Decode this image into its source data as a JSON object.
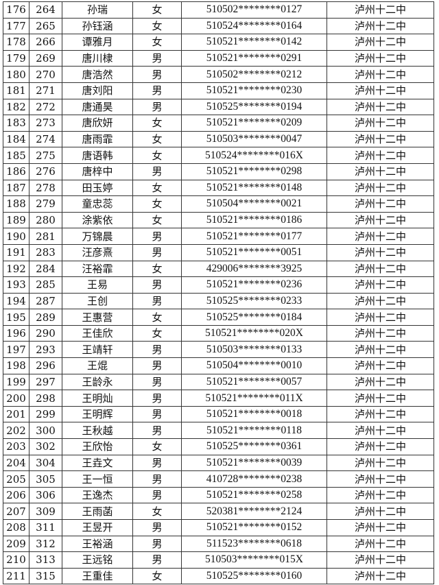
{
  "table": {
    "rows": [
      [
        "176",
        "264",
        "孙瑞",
        "女",
        "510502********0127",
        "泸州十二中"
      ],
      [
        "177",
        "265",
        "孙钰涵",
        "女",
        "510524********0164",
        "泸州十二中"
      ],
      [
        "178",
        "266",
        "谭雅月",
        "女",
        "510521********0142",
        "泸州十二中"
      ],
      [
        "179",
        "269",
        "唐川棣",
        "男",
        "510521********0291",
        "泸州十二中"
      ],
      [
        "180",
        "270",
        "唐浩然",
        "男",
        "510502********0212",
        "泸州十二中"
      ],
      [
        "181",
        "271",
        "唐刘阳",
        "男",
        "510521********0230",
        "泸州十二中"
      ],
      [
        "182",
        "272",
        "唐通昊",
        "男",
        "510525********0194",
        "泸州十二中"
      ],
      [
        "183",
        "273",
        "唐欣妍",
        "女",
        "510521********0209",
        "泸州十二中"
      ],
      [
        "184",
        "274",
        "唐雨霏",
        "女",
        "510503********0047",
        "泸州十二中"
      ],
      [
        "185",
        "275",
        "唐语韩",
        "女",
        "510524********016X",
        "泸州十二中"
      ],
      [
        "186",
        "276",
        "唐梓中",
        "男",
        "510521********0298",
        "泸州十二中"
      ],
      [
        "187",
        "278",
        "田玉婷",
        "女",
        "510521********0148",
        "泸州十二中"
      ],
      [
        "188",
        "279",
        "童忠蕊",
        "女",
        "510504********0021",
        "泸州十二中"
      ],
      [
        "189",
        "280",
        "涂紫依",
        "女",
        "510521********0186",
        "泸州十二中"
      ],
      [
        "190",
        "281",
        "万锦晨",
        "男",
        "510521********0177",
        "泸州十二中"
      ],
      [
        "191",
        "283",
        "汪彦熹",
        "男",
        "510521********0051",
        "泸州十二中"
      ],
      [
        "192",
        "284",
        "汪裕霏",
        "女",
        "429006********3925",
        "泸州十二中"
      ],
      [
        "193",
        "285",
        "王易",
        "男",
        "510521********0236",
        "泸州十二中"
      ],
      [
        "194",
        "287",
        "王创",
        "男",
        "510525********0233",
        "泸州十二中"
      ],
      [
        "195",
        "289",
        "王惠营",
        "女",
        "510525********0184",
        "泸州十二中"
      ],
      [
        "196",
        "290",
        "王佳欣",
        "女",
        "510521********020X",
        "泸州十二中"
      ],
      [
        "197",
        "293",
        "王靖轩",
        "男",
        "510503********0133",
        "泸州十二中"
      ],
      [
        "198",
        "296",
        "王焜",
        "男",
        "510504********0010",
        "泸州十二中"
      ],
      [
        "199",
        "297",
        "王龄永",
        "男",
        "510521********0057",
        "泸州十二中"
      ],
      [
        "200",
        "298",
        "王明灿",
        "男",
        "510521********011X",
        "泸州十二中"
      ],
      [
        "201",
        "299",
        "王明辉",
        "男",
        "510521********0018",
        "泸州十二中"
      ],
      [
        "202",
        "300",
        "王秋越",
        "男",
        "510521********0118",
        "泸州十二中"
      ],
      [
        "203",
        "302",
        "王欣怡",
        "女",
        "510525********0361",
        "泸州十二中"
      ],
      [
        "204",
        "304",
        "王垚文",
        "男",
        "510521********0039",
        "泸州十二中"
      ],
      [
        "205",
        "305",
        "王一恒",
        "男",
        "410728********0238",
        "泸州十二中"
      ],
      [
        "206",
        "306",
        "王逸杰",
        "男",
        "510521********0258",
        "泸州十二中"
      ],
      [
        "207",
        "309",
        "王雨菡",
        "女",
        "520381********2124",
        "泸州十二中"
      ],
      [
        "208",
        "311",
        "王昱开",
        "男",
        "510521********0152",
        "泸州十二中"
      ],
      [
        "209",
        "312",
        "王裕涵",
        "男",
        "511523********0618",
        "泸州十二中"
      ],
      [
        "210",
        "313",
        "王远铭",
        "男",
        "510503********015X",
        "泸州十二中"
      ],
      [
        "211",
        "315",
        "王重佳",
        "女",
        "510525********0160",
        "泸州十二中"
      ]
    ]
  }
}
